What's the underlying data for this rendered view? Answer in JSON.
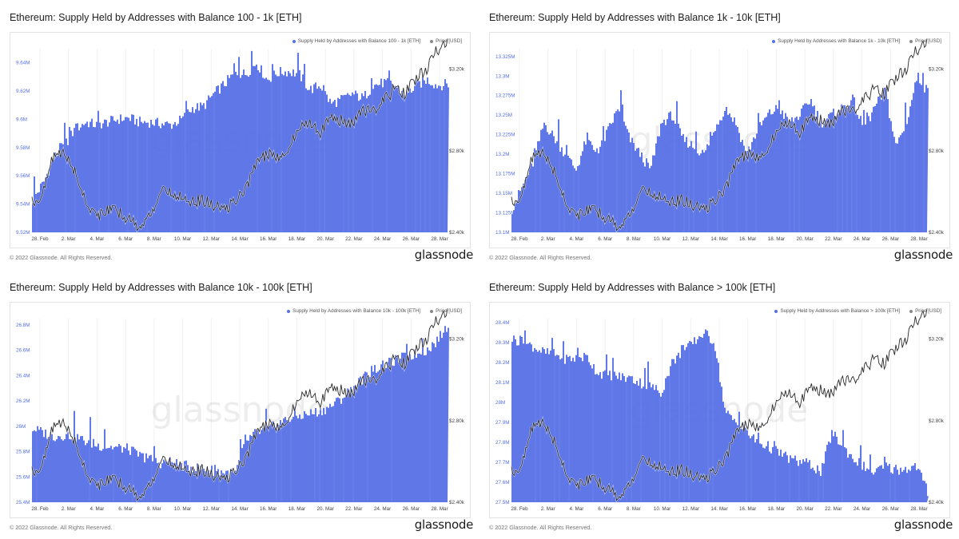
{
  "brand": {
    "watermark": "glassnode",
    "logo": "glassnode",
    "copyright": "© 2022 Glassnode. All Rights Reserved."
  },
  "colors": {
    "area": "#5670e6",
    "price": "#2a2a2a",
    "legend_price": "#888888"
  },
  "common": {
    "x_labels": [
      "28. Feb",
      "2. Mar",
      "4. Mar",
      "6. Mar",
      "8. Mar",
      "10. Mar",
      "12. Mar",
      "14. Mar",
      "16. Mar",
      "18. Mar",
      "20. Mar",
      "22. Mar",
      "24. Mar",
      "26. Mar",
      "28. Mar"
    ],
    "price_labels": [
      "$3.20k",
      "$2.80k",
      "$2.40k"
    ],
    "price_tick_values": [
      3200,
      2800,
      2400
    ],
    "price_range": [
      2400,
      3300
    ],
    "price_series": [
      2550,
      2580,
      2780,
      2790,
      2700,
      2560,
      2480,
      2510,
      2500,
      2470,
      2430,
      2470,
      2600,
      2590,
      2580,
      2550,
      2560,
      2530,
      2510,
      2550,
      2600,
      2740,
      2780,
      2770,
      2810,
      2900,
      2950,
      2890,
      2960,
      2950,
      2930,
      3000,
      3000,
      3040,
      3100,
      3080,
      3150,
      3200,
      3290,
      3330
    ]
  },
  "chart_data": [
    {
      "type": "area",
      "title": "Ethereum: Supply Held by Addresses with Balance 100 - 1k [ETH]",
      "legend": [
        "Supply Held by Addresses with Balance 100 - 1k [ETH]",
        "Price [USD]"
      ],
      "y_labels": [
        "9.64M",
        "9.62M",
        "9.6M",
        "9.58M",
        "9.56M",
        "9.54M",
        "9.52M"
      ],
      "y_tick_values": [
        9.64,
        9.62,
        9.6,
        9.58,
        9.56,
        9.54,
        9.52
      ],
      "ylim": [
        9.52,
        9.65
      ],
      "series": [
        9.543,
        9.555,
        9.573,
        9.582,
        9.593,
        9.598,
        9.596,
        9.598,
        9.6,
        9.601,
        9.598,
        9.598,
        9.597,
        9.596,
        9.6,
        9.608,
        9.609,
        9.618,
        9.625,
        9.633,
        9.632,
        9.64,
        9.628,
        9.633,
        9.634,
        9.632,
        9.621,
        9.624,
        9.611,
        9.614,
        9.618,
        9.615,
        9.624,
        9.626,
        9.624,
        9.617,
        9.624,
        9.628,
        9.624,
        9.625
      ]
    },
    {
      "type": "area",
      "title": "Ethereum: Supply Held by Addresses with Balance 1k - 10k [ETH]",
      "legend": [
        "Supply Held by Addresses with Balance 1k - 10k [ETH]",
        "Price [USD]"
      ],
      "y_labels": [
        "13.325M",
        "13.3M",
        "13.275M",
        "13.25M",
        "13.225M",
        "13.2M",
        "13.175M",
        "13.15M",
        "13.125M",
        "13.1M"
      ],
      "y_tick_values": [
        13.325,
        13.3,
        13.275,
        13.25,
        13.225,
        13.2,
        13.175,
        13.15,
        13.125,
        13.1
      ],
      "ylim": [
        13.1,
        13.335
      ],
      "series": [
        13.13,
        13.16,
        13.19,
        13.24,
        13.22,
        13.2,
        13.18,
        13.22,
        13.2,
        13.23,
        13.26,
        13.22,
        13.2,
        13.18,
        13.24,
        13.25,
        13.22,
        13.21,
        13.2,
        13.23,
        13.26,
        13.24,
        13.2,
        13.23,
        13.25,
        13.26,
        13.24,
        13.25,
        13.27,
        13.24,
        13.25,
        13.26,
        13.27,
        13.23,
        13.26,
        13.28,
        13.21,
        13.24,
        13.3,
        13.28
      ]
    },
    {
      "type": "area",
      "title": "Ethereum: Supply Held by Addresses with Balance 10k - 100k [ETH]",
      "legend": [
        "Supply Held by Addresses with Balance 10k - 100k [ETH]",
        "Price [USD]"
      ],
      "y_labels": [
        "26.8M",
        "26.6M",
        "26.4M",
        "26.2M",
        "26M",
        "25.8M",
        "25.6M",
        "25.4M"
      ],
      "y_tick_values": [
        26.8,
        26.6,
        26.4,
        26.2,
        26.0,
        25.8,
        25.6,
        25.4
      ],
      "ylim": [
        25.4,
        26.85
      ],
      "series": [
        25.98,
        25.95,
        25.92,
        25.93,
        25.92,
        25.88,
        25.85,
        25.84,
        25.83,
        25.82,
        25.77,
        25.74,
        25.71,
        25.72,
        25.69,
        25.68,
        25.66,
        25.65,
        25.64,
        25.62,
        25.88,
        25.95,
        25.97,
        26.02,
        26.06,
        26.08,
        26.1,
        26.12,
        26.16,
        26.22,
        26.3,
        26.38,
        26.45,
        26.48,
        26.52,
        26.55,
        26.57,
        26.6,
        26.68,
        26.8
      ]
    },
    {
      "type": "area",
      "title": "Ethereum: Supply Held by Addresses with Balance > 100k [ETH]",
      "legend": [
        "Supply Held by Addresses with Balance > 100k [ETH]",
        "Price [USD]"
      ],
      "y_labels": [
        "28.4M",
        "28.3M",
        "28.2M",
        "28.1M",
        "28M",
        "27.9M",
        "27.8M",
        "27.7M",
        "27.6M",
        "27.5M"
      ],
      "y_tick_values": [
        28.4,
        28.3,
        28.2,
        28.1,
        28.0,
        27.9,
        27.8,
        27.7,
        27.6,
        27.5
      ],
      "ylim": [
        27.5,
        28.42
      ],
      "series": [
        28.32,
        28.3,
        28.28,
        28.25,
        28.24,
        28.22,
        28.22,
        28.23,
        28.15,
        28.14,
        28.13,
        28.12,
        28.1,
        28.08,
        28.05,
        28.2,
        28.25,
        28.3,
        28.35,
        28.3,
        27.95,
        27.9,
        27.85,
        27.8,
        27.78,
        27.75,
        27.72,
        27.7,
        27.69,
        27.65,
        27.85,
        27.78,
        27.72,
        27.68,
        27.65,
        27.68,
        27.66,
        27.67,
        27.68,
        27.55
      ]
    }
  ]
}
